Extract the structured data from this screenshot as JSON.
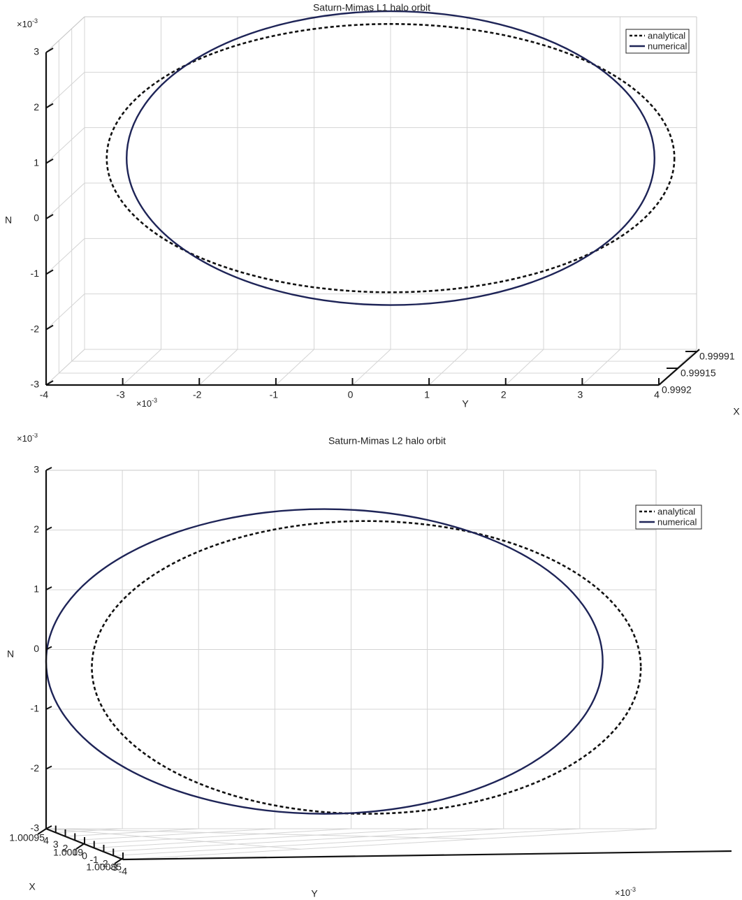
{
  "chart_data": [
    {
      "type": "line",
      "title": "Saturn-Mimas L1 halo orbit",
      "ylabel": "N",
      "xlabel": "Y",
      "zlabel": "X",
      "scale_label_y": "×10-3",
      "scale_label_n": "×10-3",
      "n_ticks": [
        "3",
        "2",
        "1",
        "0",
        "-1",
        "-2",
        "-3"
      ],
      "y_ticks": [
        "-4",
        "-3",
        "-2",
        "-1",
        "0",
        "1",
        "2",
        "3",
        "4"
      ],
      "x_ticks": [
        "0.99991",
        "0.99915",
        "0.9992"
      ],
      "nlim": [
        -3,
        3
      ],
      "ylim": [
        -4,
        4
      ],
      "grid": true,
      "legend_position": "top-right",
      "series": [
        {
          "name": "analytical",
          "style": "dashed",
          "color": "#111111",
          "center_y": 0.0,
          "center_n": 0.45,
          "amp_y": 3.71,
          "amp_n": 2.42
        },
        {
          "name": "numerical",
          "style": "solid",
          "color": "#1e2457",
          "center_y": 0.0,
          "center_n": 0.45,
          "amp_y": 3.45,
          "amp_n": 2.65
        }
      ]
    },
    {
      "type": "line",
      "title": "Saturn-Mimas L2 halo orbit",
      "ylabel": "N",
      "xlabel": "Y",
      "zlabel": "X",
      "scale_label_y": "×10-3",
      "scale_label_n": "×10-3",
      "n_ticks": [
        "3",
        "2",
        "1",
        "0",
        "-1",
        "-2",
        "-3"
      ],
      "y_ticks": [
        "4",
        "3",
        "2",
        "1",
        "0",
        "-1",
        "-2",
        "-3",
        "-4"
      ],
      "x_ticks": [
        "1.00095",
        "1.0009",
        "1.00085"
      ],
      "nlim": [
        -3,
        3
      ],
      "ylim": [
        -4,
        4
      ],
      "grid": true,
      "legend_position": "top-right",
      "series": [
        {
          "name": "analytical",
          "style": "dashed",
          "color": "#111111",
          "center_y": -0.2,
          "center_n": -0.3,
          "amp_y": 3.6,
          "amp_n": 2.45
        },
        {
          "name": "numerical",
          "style": "solid",
          "color": "#1e2457",
          "center_y": 0.35,
          "center_n": -0.2,
          "amp_y": 3.65,
          "amp_n": 2.55
        }
      ]
    }
  ]
}
